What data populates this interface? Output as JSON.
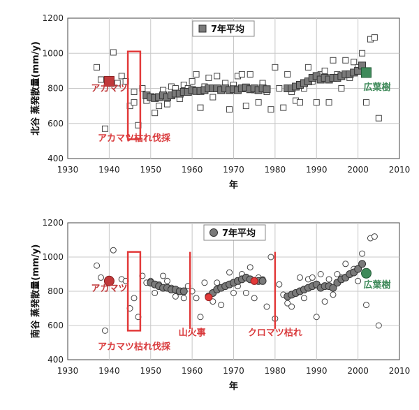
{
  "chart_data": [
    {
      "type": "scatter",
      "ylabel": "北谷 蒸発散量(mm/y)",
      "xlabel": "年",
      "xlim": [
        1930,
        2010
      ],
      "ylim": [
        400,
        1200
      ],
      "xticks": [
        1930,
        1940,
        1950,
        1960,
        1970,
        1980,
        1990,
        2000,
        2010
      ],
      "yticks": [
        400,
        600,
        800,
        1000,
        1200
      ],
      "grid": true,
      "legend": {
        "label": "7年平均",
        "placement": "top-center"
      },
      "colors": {
        "annual": "#ffffff",
        "avg": "#7a7a7a",
        "akamatsu": "#c0393b",
        "broadleaf": "#3f8a5a",
        "event": "#e23a3a"
      },
      "series": [
        {
          "role": "annual",
          "points": [
            [
              1937,
              920
            ],
            [
              1938,
              850
            ],
            [
              1939,
              570
            ],
            [
              1940,
              850
            ],
            [
              1941,
              1005
            ],
            [
              1942,
              830
            ],
            [
              1943,
              870
            ],
            [
              1944,
              840
            ],
            [
              1945,
              700
            ],
            [
              1946,
              720
            ],
            [
              1946,
              780
            ],
            [
              1947,
              590
            ],
            [
              1948,
              800
            ],
            [
              1949,
              730
            ],
            [
              1950,
              750
            ],
            [
              1951,
              660
            ],
            [
              1952,
              700
            ],
            [
              1953,
              790
            ],
            [
              1954,
              710
            ],
            [
              1955,
              810
            ],
            [
              1956,
              800
            ],
            [
              1957,
              740
            ],
            [
              1958,
              820
            ],
            [
              1959,
              800
            ],
            [
              1960,
              840
            ],
            [
              1961,
              880
            ],
            [
              1962,
              690
            ],
            [
              1963,
              810
            ],
            [
              1964,
              860
            ],
            [
              1965,
              750
            ],
            [
              1966,
              870
            ],
            [
              1967,
              790
            ],
            [
              1968,
              830
            ],
            [
              1969,
              680
            ],
            [
              1970,
              820
            ],
            [
              1971,
              870
            ],
            [
              1972,
              880
            ],
            [
              1973,
              700
            ],
            [
              1974,
              880
            ],
            [
              1975,
              790
            ],
            [
              1976,
              720
            ],
            [
              1977,
              830
            ],
            [
              1978,
              780
            ],
            [
              1979,
              680
            ],
            [
              1980,
              920
            ],
            [
              1981,
              800
            ],
            [
              1982,
              690
            ],
            [
              1983,
              880
            ],
            [
              1984,
              780
            ],
            [
              1985,
              730
            ],
            [
              1986,
              720
            ],
            [
              1987,
              800
            ],
            [
              1988,
              920
            ],
            [
              1989,
              840
            ],
            [
              1990,
              720
            ],
            [
              1991,
              880
            ],
            [
              1992,
              900
            ],
            [
              1993,
              720
            ],
            [
              1994,
              960
            ],
            [
              1995,
              880
            ],
            [
              1996,
              800
            ],
            [
              1997,
              960
            ],
            [
              1998,
              860
            ],
            [
              1999,
              950
            ],
            [
              2000,
              920
            ],
            [
              2001,
              1000
            ],
            [
              2002,
              720
            ],
            [
              2003,
              1080
            ],
            [
              2004,
              1090
            ],
            [
              2005,
              630
            ]
          ]
        },
        {
          "role": "avg",
          "name": "7年平均",
          "points": [
            [
              1949,
              760
            ],
            [
              1950,
              750
            ],
            [
              1951,
              745
            ],
            [
              1952,
              750
            ],
            [
              1953,
              760
            ],
            [
              1954,
              750
            ],
            [
              1955,
              760
            ],
            [
              1956,
              770
            ],
            [
              1957,
              770
            ],
            [
              1958,
              780
            ],
            [
              1959,
              780
            ],
            [
              1960,
              790
            ],
            [
              1961,
              785
            ],
            [
              1962,
              785
            ],
            [
              1963,
              790
            ],
            [
              1964,
              800
            ],
            [
              1965,
              800
            ],
            [
              1966,
              800
            ],
            [
              1967,
              790
            ],
            [
              1968,
              800
            ],
            [
              1969,
              790
            ],
            [
              1970,
              795
            ],
            [
              1971,
              790
            ],
            [
              1972,
              800
            ],
            [
              1973,
              805
            ],
            [
              1974,
              795
            ],
            [
              1975,
              800
            ],
            [
              1976,
              790
            ],
            [
              1977,
              800
            ],
            [
              1978,
              795
            ],
            [
              1983,
              800
            ],
            [
              1984,
              800
            ],
            [
              1985,
              810
            ],
            [
              1986,
              820
            ],
            [
              1987,
              830
            ],
            [
              1988,
              840
            ],
            [
              1989,
              860
            ],
            [
              1990,
              870
            ],
            [
              1991,
              850
            ],
            [
              1992,
              860
            ],
            [
              1993,
              850
            ],
            [
              1994,
              860
            ],
            [
              1995,
              860
            ],
            [
              1996,
              870
            ],
            [
              1997,
              880
            ],
            [
              1998,
              880
            ],
            [
              1999,
              890
            ],
            [
              2000,
              900
            ],
            [
              2001,
              930
            ]
          ]
        },
        {
          "role": "akamatsu",
          "points": [
            [
              1940,
              840
            ]
          ]
        },
        {
          "role": "broadleaf",
          "points": [
            [
              2002,
              890
            ]
          ]
        }
      ],
      "annotations": [
        {
          "text": "アカマツ",
          "x": 1940,
          "y": 785,
          "color": "#c0393b"
        },
        {
          "text": "アカマツ枯れ伐採",
          "x": 1946,
          "y": 500,
          "color": "#d9393b"
        },
        {
          "text": "広葉樹",
          "x": 2003,
          "y": 790,
          "color": "#3f8a5a"
        }
      ],
      "rect": {
        "x0": 1944.5,
        "x1": 1947.5,
        "y0": 510,
        "y1": 1010,
        "color": "#e23a3a"
      }
    },
    {
      "type": "scatter",
      "ylabel": "南谷 蒸発散量(mm/y)",
      "xlabel": "年",
      "xlim": [
        1930,
        2010
      ],
      "ylim": [
        400,
        1200
      ],
      "xticks": [
        1930,
        1940,
        1950,
        1960,
        1970,
        1980,
        1990,
        2000,
        2010
      ],
      "yticks": [
        400,
        600,
        800,
        1000,
        1200
      ],
      "grid": true,
      "legend": {
        "label": "7年平均",
        "placement": "top-center"
      },
      "colors": {
        "annual": "#ffffff",
        "avg": "#7a7a7a",
        "akamatsu": "#c0393b",
        "broadleaf": "#3f8a5a",
        "event": "#e23a3a"
      },
      "series": [
        {
          "role": "annual",
          "points": [
            [
              1937,
              950
            ],
            [
              1938,
              880
            ],
            [
              1939,
              570
            ],
            [
              1941,
              1040
            ],
            [
              1943,
              870
            ],
            [
              1944,
              860
            ],
            [
              1945,
              700
            ],
            [
              1946,
              760
            ],
            [
              1947,
              650
            ],
            [
              1948,
              890
            ],
            [
              1949,
              850
            ],
            [
              1950,
              860
            ],
            [
              1951,
              790
            ],
            [
              1952,
              840
            ],
            [
              1953,
              890
            ],
            [
              1954,
              860
            ],
            [
              1955,
              820
            ],
            [
              1956,
              770
            ],
            [
              1957,
              800
            ],
            [
              1958,
              760
            ],
            [
              1959,
              830
            ],
            [
              1960,
              800
            ],
            [
              1961,
              760
            ],
            [
              1962,
              650
            ],
            [
              1963,
              850
            ],
            [
              1964,
              770
            ],
            [
              1965,
              740
            ],
            [
              1966,
              850
            ],
            [
              1967,
              720
            ],
            [
              1968,
              830
            ],
            [
              1969,
              910
            ],
            [
              1970,
              790
            ],
            [
              1971,
              830
            ],
            [
              1972,
              900
            ],
            [
              1973,
              790
            ],
            [
              1974,
              940
            ],
            [
              1975,
              760
            ],
            [
              1976,
              880
            ],
            [
              1977,
              870
            ],
            [
              1978,
              710
            ],
            [
              1979,
              1000
            ],
            [
              1980,
              640
            ],
            [
              1981,
              840
            ],
            [
              1982,
              780
            ],
            [
              1983,
              730
            ],
            [
              1984,
              710
            ],
            [
              1985,
              790
            ],
            [
              1986,
              880
            ],
            [
              1987,
              760
            ],
            [
              1988,
              870
            ],
            [
              1989,
              880
            ],
            [
              1990,
              650
            ],
            [
              1991,
              900
            ],
            [
              1992,
              740
            ],
            [
              1993,
              870
            ],
            [
              1994,
              780
            ],
            [
              1995,
              900
            ],
            [
              1996,
              880
            ],
            [
              1997,
              960
            ],
            [
              1998,
              900
            ],
            [
              1999,
              930
            ],
            [
              2000,
              860
            ],
            [
              2001,
              1020
            ],
            [
              2002,
              720
            ],
            [
              2003,
              1110
            ],
            [
              2004,
              1120
            ],
            [
              2005,
              600
            ]
          ]
        },
        {
          "role": "avg",
          "name": "7年平均",
          "points": [
            [
              1950,
              850
            ],
            [
              1951,
              840
            ],
            [
              1952,
              830
            ],
            [
              1953,
              820
            ],
            [
              1954,
              820
            ],
            [
              1955,
              810
            ],
            [
              1956,
              810
            ],
            [
              1957,
              800
            ],
            [
              1958,
              800
            ],
            [
              1964,
              770
            ],
            [
              1965,
              790
            ],
            [
              1966,
              810
            ],
            [
              1967,
              820
            ],
            [
              1968,
              830
            ],
            [
              1969,
              840
            ],
            [
              1970,
              850
            ],
            [
              1971,
              860
            ],
            [
              1972,
              870
            ],
            [
              1973,
              880
            ],
            [
              1974,
              870
            ],
            [
              1975,
              860
            ],
            [
              1976,
              860
            ],
            [
              1977,
              860
            ],
            [
              1983,
              770
            ],
            [
              1984,
              780
            ],
            [
              1985,
              790
            ],
            [
              1986,
              800
            ],
            [
              1987,
              810
            ],
            [
              1988,
              820
            ],
            [
              1989,
              830
            ],
            [
              1990,
              840
            ],
            [
              1991,
              820
            ],
            [
              1992,
              830
            ],
            [
              1993,
              830
            ],
            [
              1994,
              820
            ],
            [
              1995,
              850
            ],
            [
              1996,
              870
            ],
            [
              1997,
              880
            ],
            [
              1998,
              900
            ],
            [
              1999,
              910
            ],
            [
              2000,
              930
            ],
            [
              2001,
              960
            ]
          ]
        },
        {
          "role": "akamatsu",
          "points": [
            [
              1940,
              860
            ]
          ]
        },
        {
          "role": "broadleaf",
          "points": [
            [
              2002,
              905
            ]
          ]
        },
        {
          "role": "event",
          "points": [
            [
              1964,
              765
            ],
            [
              1975,
              860
            ]
          ]
        }
      ],
      "annotations": [
        {
          "text": "アカマツ",
          "x": 1940,
          "y": 800,
          "color": "#c0393b"
        },
        {
          "text": "アカマツ枯れ伐採",
          "x": 1946,
          "y": 460,
          "color": "#d9393b"
        },
        {
          "text": "山火事",
          "x": 1960,
          "y": 540,
          "color": "#d9393b"
        },
        {
          "text": "クロマツ枯れ",
          "x": 1980,
          "y": 540,
          "color": "#d9393b"
        },
        {
          "text": "広葉樹",
          "x": 2003,
          "y": 820,
          "color": "#3f8a5a"
        }
      ],
      "rect": {
        "x0": 1944.5,
        "x1": 1947.5,
        "y0": 570,
        "y1": 1030,
        "color": "#e23a3a"
      },
      "vlines": [
        {
          "x": 1959.5,
          "y0": 580,
          "y1": 1030,
          "color": "#e23a3a"
        },
        {
          "x": 1980,
          "y0": 580,
          "y1": 1030,
          "color": "#e23a3a"
        }
      ]
    }
  ]
}
